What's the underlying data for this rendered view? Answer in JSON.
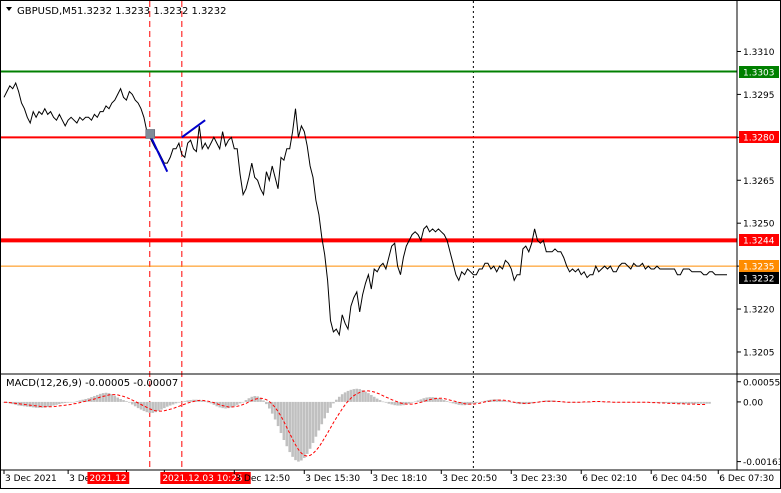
{
  "header": {
    "symbol": "GBPUSD,M5",
    "ohlc": "1.3232 1.3233 1.3232 1.3232"
  },
  "colors": {
    "green": "#008000",
    "red": "#ff0000",
    "orange": "#ff8c00",
    "price_line": "#000000",
    "signal_line": "#0000cc",
    "macd_hist": "#c0c0c0",
    "macd_signal": "#ff0000"
  },
  "chart_data": [
    {
      "type": "line",
      "title": "GBPUSD,M5",
      "y_ticks": [
        "1.3310",
        "1.3295",
        "1.3280",
        "1.3265",
        "1.3250",
        "1.3235",
        "1.3220",
        "1.3205"
      ],
      "y_tick_values": [
        1.331,
        1.3295,
        1.328,
        1.3265,
        1.325,
        1.3235,
        1.322,
        1.3205
      ],
      "ylim": [
        1.3198,
        1.3321
      ],
      "x_ticks": [
        "3 Dec 2021",
        "3 Dec 04:40",
        "2021.12",
        "2021.12.03 10:25",
        "3 Dec 12:50",
        "3 Dec 15:30",
        "3 Dec 18:10",
        "3 Dec 20:50",
        "3 Dec 23:30",
        "6 Dec 02:10",
        "6 Dec 04:50",
        "6 Dec 07:30"
      ],
      "x_tick_index": [
        0,
        22,
        42,
        55,
        79,
        103,
        126,
        150,
        174,
        198,
        222,
        245
      ],
      "highlighted_x_ticks": [
        "2021.12",
        "2021.12.03 10:25"
      ],
      "levels": [
        {
          "value": 1.3303,
          "label": "1.3303",
          "color": "#008000"
        },
        {
          "value": 1.328,
          "label": "1.3280",
          "color": "#ff0000"
        },
        {
          "value": 1.3244,
          "label": "1.3244",
          "color": "#ff0000"
        },
        {
          "value": 1.3235,
          "label": "1.3235",
          "color": "#ff8c00"
        }
      ],
      "current_price": "1.3232",
      "series": [
        {
          "values": [
            1.3294,
            1.3296,
            1.3298,
            1.3297,
            1.3299,
            1.3296,
            1.3292,
            1.329,
            1.3287,
            1.3285,
            1.3289,
            1.3287,
            1.3289,
            1.3288,
            1.329,
            1.3288,
            1.3289,
            1.3287,
            1.3286,
            1.3288,
            1.3286,
            1.3284,
            1.3286,
            1.3287,
            1.3286,
            1.3285,
            1.3287,
            1.3286,
            1.3287,
            1.3287,
            1.3286,
            1.3288,
            1.3287,
            1.3289,
            1.3289,
            1.3291,
            1.329,
            1.3292,
            1.3293,
            1.3295,
            1.3297,
            1.3294,
            1.3293,
            1.3296,
            1.3295,
            1.3293,
            1.3292,
            1.329,
            1.3287,
            1.3282,
            1.328,
            1.3278,
            1.3276,
            1.3275,
            1.3273,
            1.3271,
            1.3271,
            1.3273,
            1.3276,
            1.3276,
            1.3278,
            1.3274,
            1.3273,
            1.3278,
            1.3279,
            1.3276,
            1.3275,
            1.3284,
            1.3276,
            1.3278,
            1.3276,
            1.3278,
            1.328,
            1.3278,
            1.3276,
            1.3282,
            1.3277,
            1.3279,
            1.328,
            1.3276,
            1.3276,
            1.3267,
            1.326,
            1.3262,
            1.3266,
            1.3271,
            1.3266,
            1.3265,
            1.3262,
            1.326,
            1.3268,
            1.3265,
            1.327,
            1.3266,
            1.3262,
            1.3273,
            1.3272,
            1.3276,
            1.3276,
            1.3282,
            1.329,
            1.328,
            1.3284,
            1.3282,
            1.3277,
            1.327,
            1.3266,
            1.3258,
            1.3253,
            1.3245,
            1.3239,
            1.323,
            1.3216,
            1.3212,
            1.3213,
            1.3211,
            1.3218,
            1.3215,
            1.3213,
            1.3221,
            1.3224,
            1.3226,
            1.3219,
            1.3225,
            1.3229,
            1.3232,
            1.3227,
            1.3234,
            1.3233,
            1.3235,
            1.3236,
            1.3234,
            1.3238,
            1.3242,
            1.3243,
            1.3235,
            1.3232,
            1.3238,
            1.3242,
            1.3244,
            1.3246,
            1.3247,
            1.3246,
            1.3244,
            1.3248,
            1.3249,
            1.3247,
            1.3248,
            1.3247,
            1.3248,
            1.3247,
            1.3246,
            1.3244,
            1.324,
            1.3236,
            1.3232,
            1.323,
            1.3233,
            1.3232,
            1.3234,
            1.3233,
            1.3232,
            1.3232,
            1.3234,
            1.3234,
            1.3236,
            1.3236,
            1.3234,
            1.3235,
            1.3233,
            1.3235,
            1.3234,
            1.3237,
            1.3236,
            1.3234,
            1.323,
            1.3232,
            1.3232,
            1.3241,
            1.3242,
            1.324,
            1.3243,
            1.3248,
            1.3244,
            1.3243,
            1.3244,
            1.324,
            1.324,
            1.324,
            1.3241,
            1.324,
            1.324,
            1.3238,
            1.3235,
            1.3233,
            1.3234,
            1.3233,
            1.3234,
            1.3232,
            1.3233,
            1.3231,
            1.3232,
            1.3232,
            1.3235,
            1.3233,
            1.3234,
            1.3235,
            1.3234,
            1.3235,
            1.3233,
            1.3233,
            1.3235,
            1.3236,
            1.3236,
            1.3235,
            1.3234,
            1.3236,
            1.3235,
            1.3235,
            1.3236,
            1.3234,
            1.3235,
            1.3234,
            1.3234,
            1.3235,
            1.3234,
            1.3234,
            1.3234,
            1.3234,
            1.3234,
            1.3234,
            1.3232,
            1.3232,
            1.3234,
            1.3234,
            1.3234,
            1.3233,
            1.3233,
            1.3233,
            1.3233,
            1.3232,
            1.3232,
            1.3233,
            1.3233,
            1.3232,
            1.3232,
            1.3232,
            1.3232,
            1.3232
          ]
        }
      ],
      "annotation_lines": [
        {
          "points": [
            [
              50,
              1.3281
            ],
            [
              56,
              1.3268
            ]
          ]
        },
        {
          "points": [
            [
              61,
              1.328
            ],
            [
              69,
              1.3286
            ]
          ]
        }
      ],
      "marker": {
        "x": 50,
        "y": 1.3281
      },
      "vertical_markers": [
        {
          "index": 50,
          "style": "dashed-red"
        },
        {
          "index": 61,
          "style": "dashed-red"
        },
        {
          "index": 161,
          "style": "dotted-black"
        }
      ]
    },
    {
      "type": "bar",
      "title": "MACD(12,26,9) -0.00005 -0.00007",
      "y_ticks": [
        "0.00055",
        "0.00",
        "-0.00163"
      ],
      "y_tick_values": [
        0.00055,
        0.0,
        -0.00163
      ],
      "ylim": [
        -0.00175,
        0.00068
      ],
      "series": [
        {
          "name": "Histogram",
          "values": [
            -2e-05,
            -3e-05,
            -4e-05,
            -6e-05,
            -8e-05,
            -0.0001,
            -0.00011,
            -0.00012,
            -0.00013,
            -0.00014,
            -0.00015,
            -0.00016,
            -0.00016,
            -0.00016,
            -0.00015,
            -0.00014,
            -0.00012,
            -0.0001,
            -8e-05,
            -6e-05,
            -4e-05,
            -3e-05,
            -2e-05,
            -1e-05,
            0.0,
            2e-05,
            4e-05,
            6e-05,
            8e-05,
            0.0001,
            0.00013,
            0.00016,
            0.00019,
            0.00022,
            0.00024,
            0.00025,
            0.00024,
            0.00021,
            0.00017,
            0.00012,
            8e-05,
            5e-05,
            2e-05,
            -2e-05,
            -7e-05,
            -0.00012,
            -0.00017,
            -0.00021,
            -0.00025,
            -0.00028,
            -0.0003,
            -0.0003,
            -0.00028,
            -0.00025,
            -0.00021,
            -0.00017,
            -0.00013,
            -0.0001,
            -7e-05,
            -4e-05,
            -2e-05,
            0.0,
            2e-05,
            4e-05,
            5e-05,
            6e-05,
            6e-05,
            5e-05,
            4e-05,
            2e-05,
            -1e-05,
            -4e-05,
            -8e-05,
            -0.00012,
            -0.00015,
            -0.00017,
            -0.00018,
            -0.00017,
            -0.00015,
            -0.00012,
            -8e-05,
            -4e-05,
            0.0,
            5e-05,
            0.0001,
            0.00014,
            0.00016,
            0.00015,
            0.00011,
            4e-05,
            -6e-05,
            -0.00018,
            -0.00032,
            -0.00048,
            -0.00066,
            -0.00085,
            -0.00104,
            -0.00121,
            -0.00137,
            -0.0015,
            -0.00159,
            -0.00163,
            -0.0016,
            -0.00153,
            -0.00142,
            -0.00128,
            -0.00112,
            -0.00095,
            -0.00078,
            -0.00061,
            -0.00045,
            -0.0003,
            -0.00016,
            -4e-05,
            6e-05,
            0.00014,
            0.00021,
            0.00026,
            0.0003,
            0.00033,
            0.00035,
            0.00036,
            0.00035,
            0.00032,
            0.00028,
            0.00024,
            0.00019,
            0.00014,
            9e-05,
            5e-05,
            1e-05,
            -2e-05,
            -5e-05,
            -7e-05,
            -9e-05,
            -0.0001,
            -0.0001,
            -9e-05,
            -7e-05,
            -5e-05,
            -2e-05,
            1e-05,
            4e-05,
            7e-05,
            0.0001,
            0.00012,
            0.00013,
            0.00013,
            0.00012,
            0.0001,
            8e-05,
            5e-05,
            2e-05,
            -1e-05,
            -4e-05,
            -6e-05,
            -8e-05,
            -9e-05,
            -9e-05,
            -8e-05,
            -7e-05,
            -5e-05,
            -3e-05,
            -1e-05,
            1e-05,
            3e-05,
            5e-05,
            6e-05,
            7e-05,
            7e-05,
            6e-05,
            5e-05,
            3e-05,
            1e-05,
            -1e-05,
            -3e-05,
            -5e-05,
            -6e-05,
            -6e-05,
            -6e-05,
            -5e-05,
            -4e-05,
            -2e-05,
            0.0,
            2e-05,
            3e-05,
            4e-05,
            4e-05,
            4e-05,
            3e-05,
            2e-05,
            1e-05,
            0.0,
            -1e-05,
            -2e-05,
            -2e-05,
            -2e-05,
            -2e-05,
            -1e-05,
            -1e-05,
            0.0,
            0.0,
            1e-05,
            1e-05,
            1e-05,
            1e-05,
            1e-05,
            0.0,
            0.0,
            -1e-05,
            -1e-05,
            -1e-05,
            -1e-05,
            -1e-05,
            0.0,
            0.0,
            0.0,
            0.0,
            0.0,
            -1e-05,
            -1e-05,
            -1e-05,
            -1e-05,
            -2e-05,
            -2e-05,
            -2e-05,
            -3e-05,
            -3e-05,
            -3e-05,
            -4e-05,
            -4e-05,
            -4e-05,
            -5e-05,
            -5e-05,
            -5e-05,
            -5e-05,
            -5e-05,
            -5e-05,
            -5e-05,
            -5e-05,
            -5e-05,
            -5e-05,
            -5e-05
          ]
        },
        {
          "name": "Signal",
          "values": [
            -1e-05,
            -1e-05,
            -2e-05,
            -3e-05,
            -4e-05,
            -5e-05,
            -6e-05,
            -7e-05,
            -8e-05,
            -9e-05,
            -0.0001,
            -0.00011,
            -0.00012,
            -0.00013,
            -0.00013,
            -0.00013,
            -0.00013,
            -0.00013,
            -0.00012,
            -0.00011,
            -0.0001,
            -9e-05,
            -8e-05,
            -7e-05,
            -5e-05,
            -4e-05,
            -2e-05,
            0.0,
            2e-05,
            4e-05,
            6e-05,
            8e-05,
            0.0001,
            0.00013,
            0.00015,
            0.00017,
            0.00019,
            0.0002,
            0.0002,
            0.00019,
            0.00017,
            0.00015,
            0.00012,
            9e-05,
            5e-05,
            1e-05,
            -3e-05,
            -7e-05,
            -0.00011,
            -0.00015,
            -0.00019,
            -0.00022,
            -0.00024,
            -0.00025,
            -0.00025,
            -0.00024,
            -0.00022,
            -0.0002,
            -0.00018,
            -0.00015,
            -0.00012,
            -9e-05,
            -6e-05,
            -3e-05,
            -1e-05,
            1e-05,
            3e-05,
            4e-05,
            4e-05,
            3e-05,
            2e-05,
            0.0,
            -2e-05,
            -5e-05,
            -8e-05,
            -0.0001,
            -0.00012,
            -0.00014,
            -0.00014,
            -0.00013,
            -0.00012,
            -0.0001,
            -7e-05,
            -4e-05,
            0.0,
            4e-05,
            7e-05,
            9e-05,
            0.0001,
            9e-05,
            6e-05,
            1e-05,
            -6e-05,
            -0.00015,
            -0.00026,
            -0.00039,
            -0.00054,
            -0.0007,
            -0.00086,
            -0.00102,
            -0.00117,
            -0.0013,
            -0.0014,
            -0.00146,
            -0.00148,
            -0.00146,
            -0.00141,
            -0.00133,
            -0.00123,
            -0.00111,
            -0.00098,
            -0.00085,
            -0.00071,
            -0.00057,
            -0.00044,
            -0.00031,
            -0.00019,
            -8e-05,
            2e-05,
            0.0001,
            0.00017,
            0.00022,
            0.00026,
            0.00029,
            0.0003,
            0.0003,
            0.00029,
            0.00027,
            0.00024,
            0.00021,
            0.00017,
            0.00013,
            0.0001,
            6e-05,
            3e-05,
            0.0,
            -3e-05,
            -5e-05,
            -6e-05,
            -6e-05,
            -6e-05,
            -5e-05,
            -3e-05,
            -1e-05,
            1e-05,
            4e-05,
            6e-05,
            8e-05,
            9e-05,
            0.0001,
            0.0001,
            9e-05,
            7e-05,
            5e-05,
            3e-05,
            1e-05,
            -1e-05,
            -3e-05,
            -5e-05,
            -6e-05,
            -6e-05,
            -6e-05,
            -5e-05,
            -4e-05,
            -2e-05,
            0.0,
            1e-05,
            3e-05,
            4e-05,
            5e-05,
            5e-05,
            5e-05,
            4e-05,
            3e-05,
            1e-05,
            -1e-05,
            -2e-05,
            -3e-05,
            -4e-05,
            -4e-05,
            -4e-05,
            -3e-05,
            -2e-05,
            -1e-05,
            0.0,
            1e-05,
            2e-05,
            2e-05,
            2e-05,
            2e-05,
            1e-05,
            1e-05,
            0.0,
            -1e-05,
            -1e-05,
            -1e-05,
            -1e-05,
            -1e-05,
            -1e-05,
            0.0,
            0.0,
            0.0,
            1e-05,
            1e-05,
            1e-05,
            1e-05,
            0.0,
            0.0,
            0.0,
            -1e-05,
            -1e-05,
            -1e-05,
            -1e-05,
            -1e-05,
            -1e-05,
            -1e-05,
            -1e-05,
            -1e-05,
            -1e-05,
            -1e-05,
            -1e-05,
            -1e-05,
            -2e-05,
            -2e-05,
            -2e-05,
            -3e-05,
            -3e-05,
            -3e-05,
            -4e-05,
            -4e-05,
            -4e-05,
            -5e-05,
            -5e-05,
            -5e-05,
            -6e-05,
            -6e-05,
            -6e-05,
            -6e-05,
            -7e-05,
            -7e-05,
            -7e-05,
            -7e-05
          ]
        }
      ]
    }
  ]
}
